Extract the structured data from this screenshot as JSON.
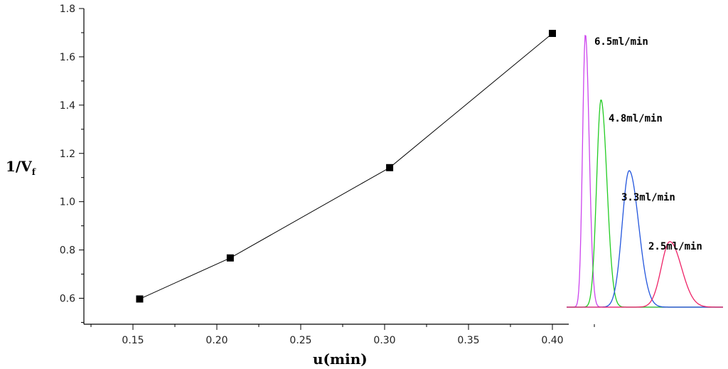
{
  "chart_data": {
    "type": "line",
    "title": "",
    "xlabel": "u(min)",
    "ylabel_main": "1/V",
    "ylabel_sub": "f",
    "xlim": [
      0.125,
      0.435
    ],
    "ylim": [
      0.5,
      1.8
    ],
    "x_ticks": [
      0.15,
      0.2,
      0.25,
      0.3,
      0.35,
      0.4
    ],
    "x_tick_labels": [
      "0.15",
      "0.20",
      "0.25",
      "0.30",
      "0.35",
      "0.40"
    ],
    "y_ticks": [
      0.6,
      0.8,
      1.0,
      1.2,
      1.4,
      1.6,
      1.8
    ],
    "y_tick_labels": [
      "0.6",
      "0.8",
      "1.0",
      "1.2",
      "1.4",
      "1.6",
      "1.8"
    ],
    "grid": false,
    "series": [
      {
        "x": [
          0.154,
          0.208,
          0.303,
          0.4
        ],
        "y": [
          0.597,
          0.767,
          1.141,
          1.697
        ],
        "color": "#000000",
        "marker": "square"
      }
    ],
    "inset": {
      "type": "line",
      "description_labels": [
        "6.5ml/min",
        "4.8ml/min",
        "3.3ml/min",
        "2.5ml/min"
      ],
      "series": [
        {
          "name": "6.5ml/min",
          "color": "#cc44ee",
          "peak_center": 0.12,
          "peak_height": 1.0,
          "width": 0.018
        },
        {
          "name": "4.8ml/min",
          "color": "#22cc22",
          "peak_center": 0.22,
          "peak_height": 0.76,
          "width": 0.028
        },
        {
          "name": "3.3ml/min",
          "color": "#2255dd",
          "peak_center": 0.4,
          "peak_height": 0.5,
          "width": 0.045
        },
        {
          "name": "2.5ml/min",
          "color": "#ee2266",
          "peak_center": 0.66,
          "peak_height": 0.24,
          "width": 0.055
        }
      ]
    }
  }
}
